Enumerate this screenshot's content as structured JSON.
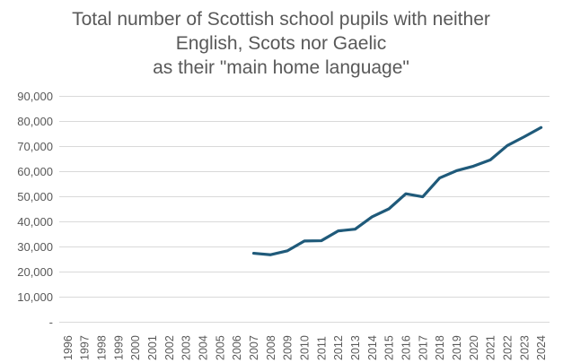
{
  "chart_data": {
    "type": "line",
    "title_lines": [
      "Total number of Scottish school pupils with neither",
      "English, Scots nor Gaelic",
      "as their \"main home language\""
    ],
    "xlabel": "",
    "ylabel": "",
    "categories": [
      "1996",
      "1997",
      "1998",
      "1999",
      "2000",
      "2001",
      "2002",
      "2003",
      "2004",
      "2005",
      "2006",
      "2007",
      "2008",
      "2009",
      "2010",
      "2011",
      "2012",
      "2013",
      "2014",
      "2015",
      "2016",
      "2017",
      "2018",
      "2019",
      "2020",
      "2021",
      "2022",
      "2023",
      "2024"
    ],
    "series": [
      {
        "values": [
          null,
          null,
          null,
          null,
          null,
          null,
          null,
          null,
          null,
          null,
          null,
          27300,
          26700,
          28300,
          32200,
          32300,
          36200,
          36900,
          41800,
          45000,
          51000,
          49800,
          57300,
          60200,
          62000,
          64500,
          70200,
          73700,
          77400
        ]
      }
    ],
    "ylim": [
      0,
      90000
    ],
    "y_ticks": [
      {
        "value": 0,
        "label": "-"
      },
      {
        "value": 10000,
        "label": "10,000"
      },
      {
        "value": 20000,
        "label": "20,000"
      },
      {
        "value": 30000,
        "label": "30,000"
      },
      {
        "value": 40000,
        "label": "40,000"
      },
      {
        "value": 50000,
        "label": "50,000"
      },
      {
        "value": 60000,
        "label": "60,000"
      },
      {
        "value": 70000,
        "label": "70,000"
      },
      {
        "value": 80000,
        "label": "80,000"
      },
      {
        "value": 90000,
        "label": "90,000"
      }
    ],
    "grid": true,
    "legend": "none",
    "colors": {
      "line": "#1f5a7a",
      "grid": "#d9d9d9",
      "text": "#595959"
    }
  }
}
